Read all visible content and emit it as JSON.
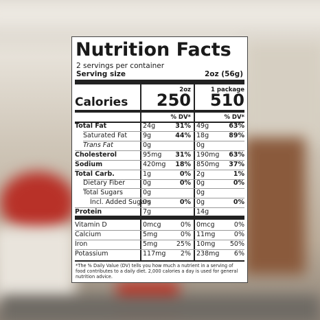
{
  "title": "Nutrition Facts",
  "servings": "2 servings per container",
  "serving_size": {
    "label": "Serving size",
    "value": "2oz (56g)"
  },
  "columns": [
    "2oz",
    "1 package"
  ],
  "calories": {
    "label": "Calories",
    "values": [
      "250",
      "510"
    ]
  },
  "dv_header": "% DV*",
  "rows": [
    {
      "label": "Total Fat",
      "amounts": [
        "24g",
        "49g"
      ],
      "dv": [
        "31%",
        "63%"
      ]
    },
    {
      "label": "Saturated Fat",
      "amounts": [
        "9g",
        "18g"
      ],
      "dv": [
        "44%",
        "89%"
      ]
    },
    {
      "label": "Trans Fat",
      "amounts": [
        "0g",
        "0g"
      ]
    },
    {
      "label": "Cholesterol",
      "amounts": [
        "95mg",
        "190mg"
      ],
      "dv": [
        "31%",
        "63%"
      ]
    },
    {
      "label": "Sodium",
      "amounts": [
        "420mg",
        "850mg"
      ],
      "dv": [
        "18%",
        "37%"
      ]
    },
    {
      "label": "Total Carb.",
      "amounts": [
        "1g",
        "2g"
      ],
      "dv": [
        "0%",
        "1%"
      ]
    },
    {
      "label": "Dietary Fiber",
      "amounts": [
        "0g",
        "0g"
      ],
      "dv": [
        "0%",
        "0%"
      ]
    },
    {
      "label": "Total Sugars",
      "amounts": [
        "0g",
        "0g"
      ]
    },
    {
      "label": "Incl. Added Sugars",
      "amounts": [
        "0g",
        "0g"
      ],
      "dv": [
        "0%",
        "0%"
      ]
    },
    {
      "label": "Protein",
      "amounts": [
        "7g",
        "14g"
      ]
    }
  ],
  "vitamins": [
    {
      "label": "Vitamin D",
      "amounts": [
        "0mcg",
        "0mcg"
      ],
      "dv": [
        "0%",
        "0%"
      ]
    },
    {
      "label": "Calcium",
      "amounts": [
        "5mg",
        "11mg"
      ],
      "dv": [
        "0%",
        "0%"
      ]
    },
    {
      "label": "Iron",
      "amounts": [
        "5mg",
        "10mg"
      ],
      "dv": [
        "25%",
        "50%"
      ]
    },
    {
      "label": "Potassium",
      "amounts": [
        "117mg",
        "238mg"
      ],
      "dv": [
        "2%",
        "6%"
      ]
    }
  ],
  "footnote": "*The % Daily Value (DV) tells you how much a nutrient in a serving of food contributes to a daily diet. 2,000 calories a day is used for general nutrition advice."
}
